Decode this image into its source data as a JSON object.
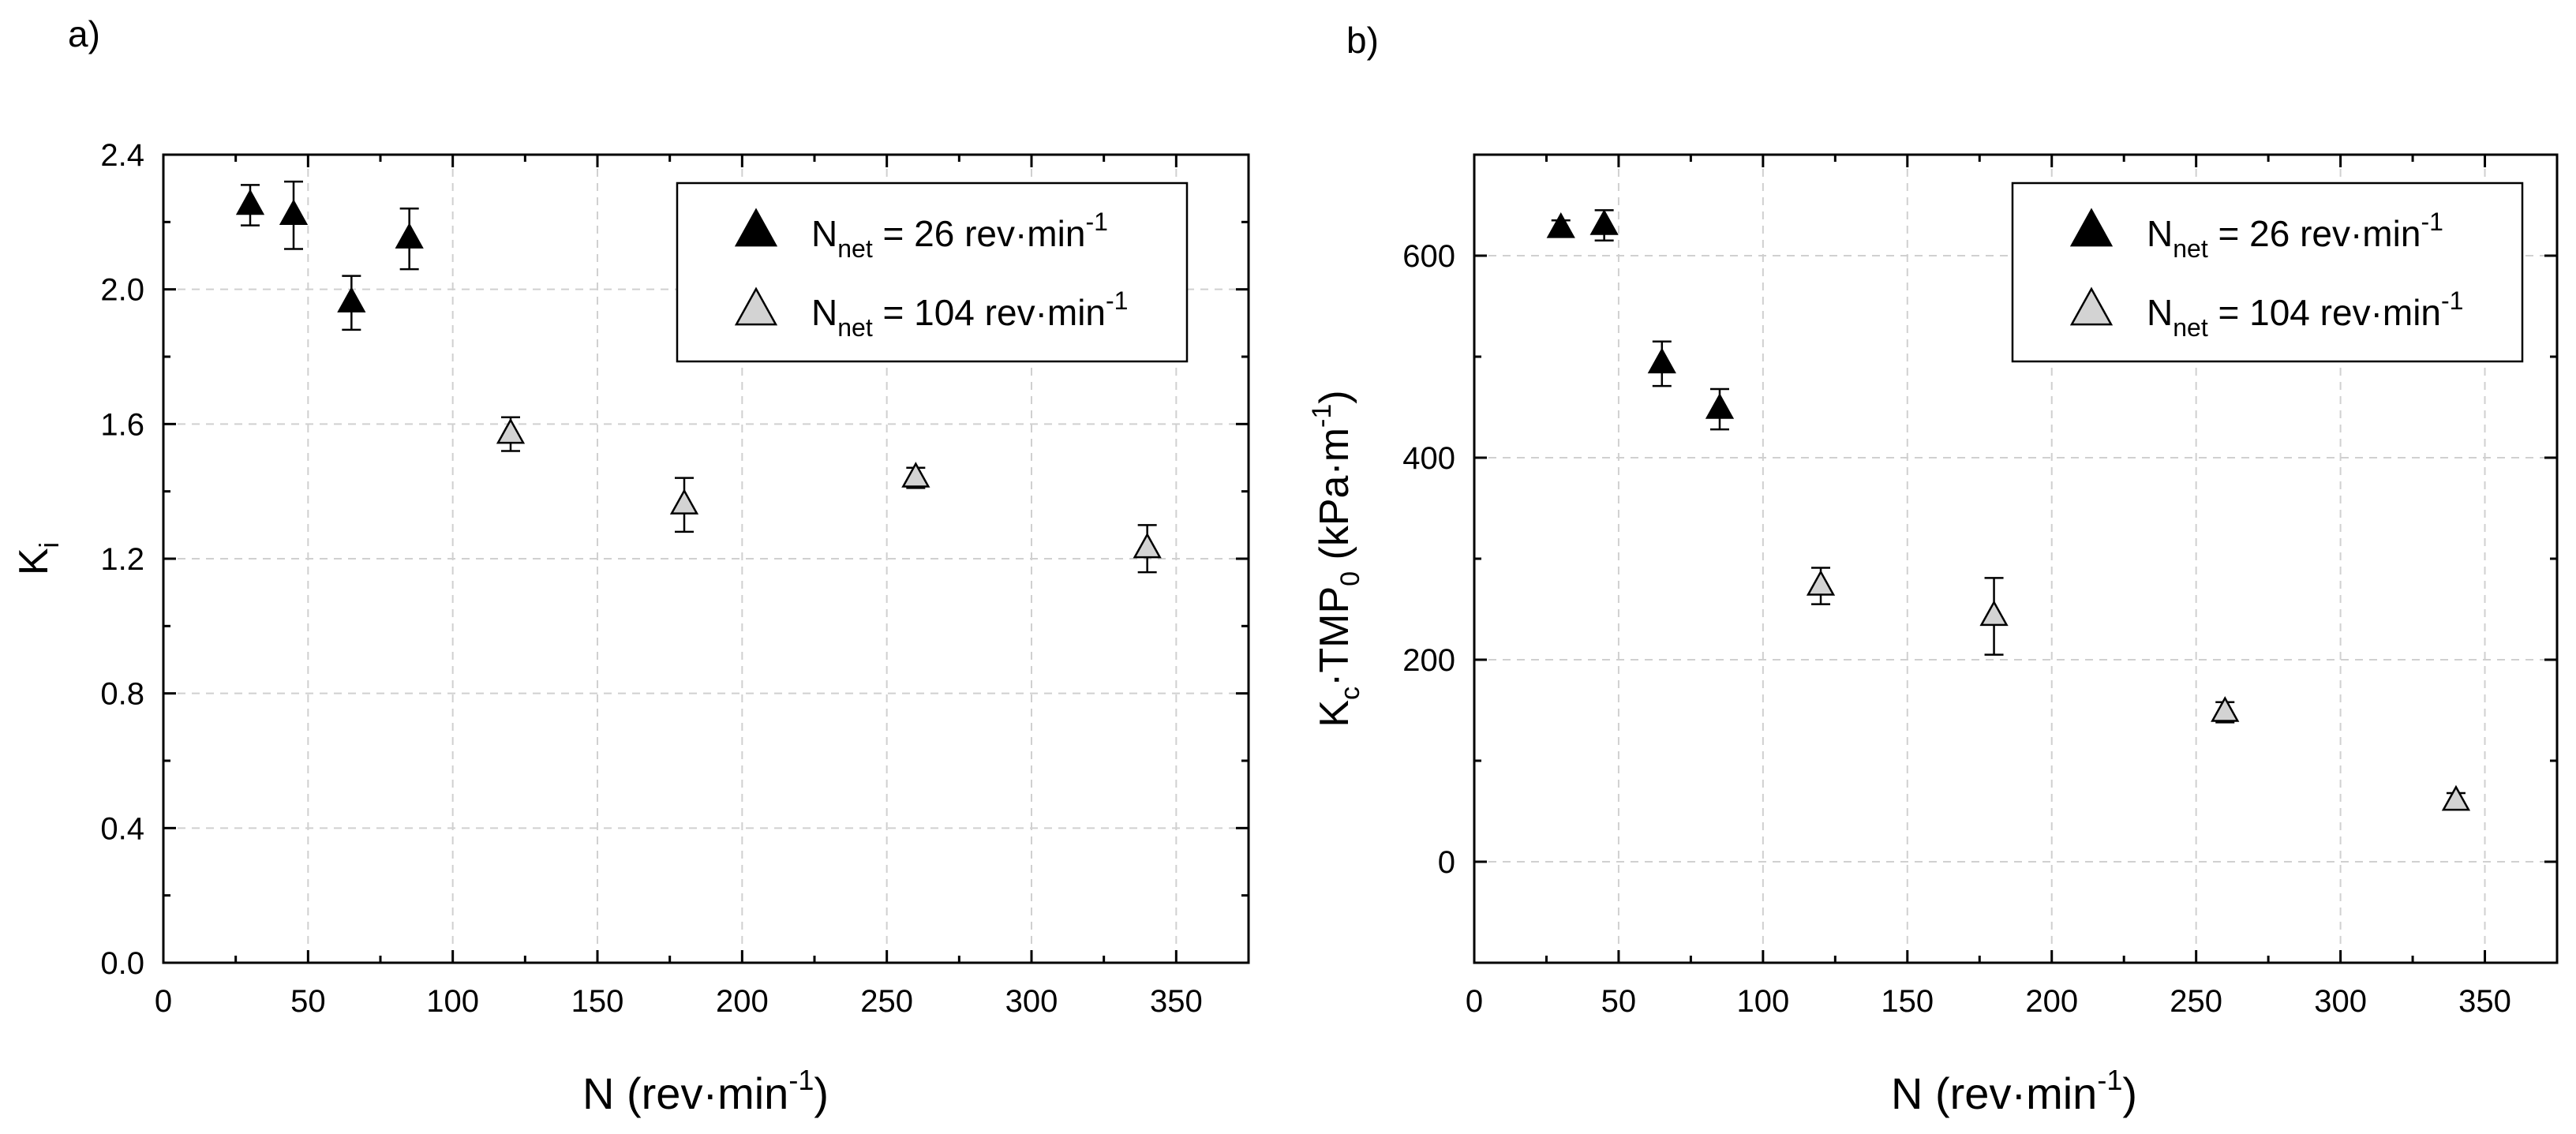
{
  "panels": {
    "a_label": "a)",
    "b_label": "b)"
  },
  "legend": {
    "entries": [
      {
        "prefix": "N",
        "sub": "net",
        "text": " = 26 rev·min",
        "sup": "-1",
        "fill": "#000000"
      },
      {
        "prefix": "N",
        "sub": "net",
        "text": " = 104 rev·min",
        "sup": "-1",
        "fill": "#d3d3d3"
      }
    ]
  },
  "chart_data": [
    {
      "type": "scatter",
      "panel": "a",
      "title": "",
      "xlabel": {
        "main": "N (rev·min",
        "sup": "-1",
        "tail": ")"
      },
      "ylabel": {
        "main": "K",
        "sub": "i"
      },
      "xlim": [
        0,
        375
      ],
      "ylim": [
        0,
        2.4
      ],
      "xticks": [
        0,
        50,
        100,
        150,
        200,
        250,
        300,
        350
      ],
      "yticks": [
        0,
        0.4,
        0.8,
        1.2,
        1.6,
        2.0,
        2.4
      ],
      "ytick_decimals": 1,
      "grid": true,
      "legend_position": "top-right",
      "series": [
        {
          "name": "N_net = 26 rev·min-1",
          "color": "#000000",
          "points": [
            {
              "x": 30,
              "y": 2.25,
              "err": 0.06
            },
            {
              "x": 45,
              "y": 2.22,
              "err": 0.1
            },
            {
              "x": 65,
              "y": 1.96,
              "err": 0.08
            },
            {
              "x": 85,
              "y": 2.15,
              "err": 0.09
            }
          ]
        },
        {
          "name": "N_net = 104 rev·min-1",
          "color": "#d3d3d3",
          "points": [
            {
              "x": 120,
              "y": 1.57,
              "err": 0.05
            },
            {
              "x": 180,
              "y": 1.36,
              "err": 0.08
            },
            {
              "x": 260,
              "y": 1.44,
              "err": 0.03
            },
            {
              "x": 340,
              "y": 1.23,
              "err": 0.07
            }
          ]
        }
      ]
    },
    {
      "type": "scatter",
      "panel": "b",
      "title": "",
      "xlabel": {
        "main": "N (rev·min",
        "sup": "-1",
        "tail": ")"
      },
      "ylabel": {
        "main": "K",
        "sub": "c",
        "mid": "·TMP",
        "sub2": "0",
        "tail": " (kPa·m",
        "sup": "-1",
        "tail2": ")"
      },
      "xlim": [
        0,
        375
      ],
      "ylim": [
        -100,
        700
      ],
      "xticks": [
        0,
        50,
        100,
        150,
        200,
        250,
        300,
        350
      ],
      "yticks": [
        0,
        200,
        400,
        600
      ],
      "ytick_decimals": 0,
      "grid": true,
      "legend_position": "top-right",
      "series": [
        {
          "name": "N_net = 26 rev·min-1",
          "color": "#000000",
          "points": [
            {
              "x": 30,
              "y": 627,
              "err": 8
            },
            {
              "x": 45,
              "y": 630,
              "err": 15
            },
            {
              "x": 65,
              "y": 493,
              "err": 22
            },
            {
              "x": 85,
              "y": 448,
              "err": 20
            }
          ]
        },
        {
          "name": "N_net = 104 rev·min-1",
          "color": "#d3d3d3",
          "points": [
            {
              "x": 120,
              "y": 273,
              "err": 18
            },
            {
              "x": 180,
              "y": 243,
              "err": 38
            },
            {
              "x": 260,
              "y": 148,
              "err": 10
            },
            {
              "x": 340,
              "y": 60,
              "err": 8
            }
          ]
        }
      ]
    }
  ]
}
